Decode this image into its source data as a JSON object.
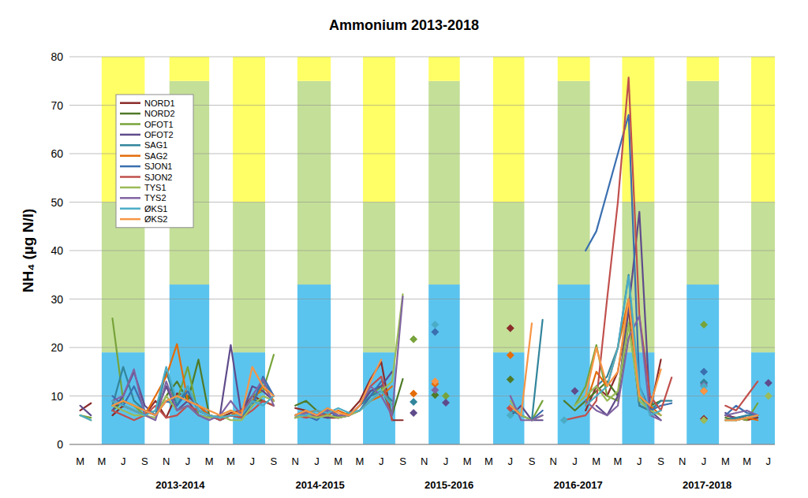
{
  "chart_data": {
    "type": "line",
    "title": "Ammonium 2013-2018",
    "y_label": "NH₄ (µg N/l)",
    "categories": [
      "M",
      null,
      "M",
      null,
      "J",
      null,
      "S",
      null,
      "N",
      null,
      "J",
      null,
      "M",
      null,
      "M",
      null,
      "J",
      null,
      "S",
      null,
      "N",
      null,
      "J",
      null,
      "M",
      null,
      "M",
      null,
      "J",
      null,
      "S",
      null,
      "N",
      null,
      "J",
      null,
      "M",
      null,
      "M",
      null,
      "J",
      null,
      "S",
      null,
      "N",
      null,
      "J",
      null,
      "M",
      null,
      "M",
      null,
      "J",
      null,
      "S",
      null,
      "N",
      null,
      "J",
      null,
      "M",
      null,
      "M",
      null,
      "J"
    ],
    "x_groups": [
      {
        "label": "2013-2014",
        "at": 9.3
      },
      {
        "label": "2014-2015",
        "at": 22.3
      },
      {
        "label": "2015-2016",
        "at": 34.3
      },
      {
        "label": "2016-2017",
        "at": 46.3
      },
      {
        "label": "2017-2018",
        "at": 58.3
      }
    ],
    "ylim": [
      0,
      80
    ],
    "yticks": [
      0,
      10,
      20,
      30,
      40,
      50,
      60,
      70,
      80
    ],
    "grid": true,
    "legend": "top-left",
    "marker": "diamond",
    "zones": [
      {
        "start": 2,
        "end": 6,
        "limits": [
          19,
          50,
          80
        ]
      },
      {
        "start": 8.3,
        "end": 12,
        "limits": [
          33,
          75,
          80
        ]
      },
      {
        "start": 14.2,
        "end": 17.2,
        "limits": [
          19,
          50,
          80
        ]
      },
      {
        "start": 20.2,
        "end": 23.3,
        "limits": [
          33,
          75,
          80
        ]
      },
      {
        "start": 26.3,
        "end": 29.3,
        "limits": [
          19,
          50,
          80
        ]
      },
      {
        "start": 32.4,
        "end": 35.3,
        "limits": [
          33,
          75,
          80
        ]
      },
      {
        "start": 38.4,
        "end": 41.3,
        "limits": [
          19,
          50,
          80
        ]
      },
      {
        "start": 44.4,
        "end": 47.4,
        "limits": [
          33,
          75,
          80
        ]
      },
      {
        "start": 50.4,
        "end": 53.4,
        "limits": [
          19,
          50,
          80
        ]
      },
      {
        "start": 56.4,
        "end": 59.4,
        "limits": [
          33,
          75,
          80
        ]
      },
      {
        "start": 62.4,
        "end": 64.6,
        "limits": [
          19,
          50,
          80
        ]
      }
    ],
    "series": [
      {
        "name": "NORD1",
        "color": "#8b2a2a",
        "values": [
          7,
          8.5,
          null,
          6,
          8,
          7,
          6,
          9,
          5.5,
          10.5,
          10,
          8,
          6,
          5.5,
          6.5,
          7,
          10,
          9,
          8,
          null,
          7.5,
          7,
          6,
          5.5,
          5.5,
          6.5,
          9,
          13.5,
          17,
          5,
          5,
          null,
          null,
          null,
          null,
          null,
          null,
          null,
          null,
          null,
          24,
          null,
          null,
          null,
          null,
          null,
          null,
          7,
          12,
          10,
          15,
          28,
          8,
          7,
          17.5,
          null,
          null,
          null,
          5.3,
          null,
          6,
          5.5,
          5,
          5.5,
          null
        ]
      },
      {
        "name": "NORD2",
        "color": "#4f7a28",
        "values": [
          null,
          null,
          null,
          7,
          9,
          8,
          7,
          6,
          10,
          13,
          9,
          17.5,
          6,
          5.5,
          6,
          5.5,
          9,
          9,
          8,
          null,
          8,
          9,
          7,
          6,
          5.5,
          6,
          8,
          11,
          12,
          6,
          13.5,
          null,
          null,
          10.2,
          null,
          null,
          null,
          null,
          null,
          null,
          13.4,
          null,
          null,
          null,
          null,
          9,
          7,
          9,
          11,
          13,
          10,
          25,
          10,
          8,
          9,
          null,
          null,
          null,
          null,
          null,
          5.5,
          5,
          5.5,
          6,
          null
        ]
      },
      {
        "name": "OFOT1",
        "color": "#77a33a",
        "values": [
          6,
          5.5,
          null,
          26,
          9,
          8,
          6,
          7,
          12,
          9,
          16,
          6,
          5.5,
          6,
          7,
          6,
          10,
          11,
          18.5,
          null,
          6,
          7,
          6,
          5.5,
          6,
          6.5,
          7,
          10,
          12,
          8,
          null,
          21.7,
          null,
          null,
          10,
          null,
          null,
          null,
          null,
          null,
          8,
          6,
          5,
          9,
          null,
          null,
          8,
          12,
          20.5,
          10,
          9,
          30,
          10,
          7,
          9,
          null,
          null,
          null,
          24.7,
          null,
          5,
          5.5,
          5,
          8.5,
          null
        ]
      },
      {
        "name": "OFOT2",
        "color": "#5f4b8b",
        "values": [
          8,
          6,
          null,
          7,
          10,
          15,
          8,
          6,
          12,
          7,
          9,
          6,
          5.5,
          6,
          20.5,
          6,
          12,
          11,
          9,
          null,
          6,
          7,
          6,
          5.5,
          6,
          6,
          8,
          11,
          12,
          15,
          null,
          6.5,
          null,
          null,
          8.6,
          null,
          null,
          null,
          null,
          null,
          5.8,
          8,
          5,
          5,
          null,
          null,
          11,
          null,
          8,
          6,
          10,
          28,
          48,
          7,
          5,
          null,
          null,
          null,
          12.7,
          null,
          6.5,
          5,
          6,
          null,
          12.7
        ]
      },
      {
        "name": "SAG1",
        "color": "#31859c",
        "values": [
          null,
          null,
          null,
          8,
          16,
          9,
          7,
          6,
          15,
          8,
          12,
          7,
          6,
          5,
          6,
          5.5,
          8,
          13,
          10,
          null,
          6,
          6.5,
          6,
          7.5,
          6,
          6,
          8,
          10,
          11,
          9,
          null,
          8.8,
          null,
          null,
          null,
          null,
          null,
          null,
          null,
          null,
          7,
          6,
          5,
          25.7,
          null,
          null,
          null,
          10,
          12,
          14,
          20,
          35,
          8,
          7,
          9,
          9,
          null,
          null,
          12.8,
          null,
          5,
          5.5,
          6,
          6,
          null
        ]
      },
      {
        "name": "SAG2",
        "color": "#e46c0a",
        "values": [
          null,
          null,
          null,
          9,
          8,
          7,
          6,
          10,
          14,
          20.7,
          9,
          8,
          6,
          5.5,
          6,
          7,
          9,
          12,
          9,
          null,
          6,
          6.5,
          7,
          6,
          7,
          6,
          7,
          9,
          10,
          12,
          null,
          10.5,
          null,
          12.5,
          null,
          null,
          null,
          null,
          null,
          null,
          18.4,
          null,
          null,
          null,
          null,
          null,
          null,
          8,
          15,
          12,
          20,
          30,
          10,
          8,
          6,
          null,
          null,
          null,
          11,
          null,
          5,
          5,
          5.5,
          5,
          null
        ]
      },
      {
        "name": "SJON1",
        "color": "#3a6fb0",
        "values": [
          null,
          null,
          null,
          10,
          8,
          12,
          7,
          6,
          9,
          8,
          11,
          7,
          6,
          5,
          6,
          6,
          8,
          14,
          10,
          null,
          5.5,
          6,
          5,
          7,
          5.5,
          6,
          7,
          10,
          13,
          null,
          null,
          null,
          null,
          23.2,
          null,
          null,
          null,
          null,
          null,
          null,
          null,
          6,
          5,
          7,
          null,
          null,
          null,
          40,
          44,
          52,
          60,
          68,
          12,
          7,
          8,
          8.5,
          null,
          null,
          15,
          null,
          6,
          8,
          6.5,
          6,
          null
        ]
      },
      {
        "name": "SJON2",
        "color": "#c0504d",
        "values": [
          null,
          null,
          null,
          7,
          6,
          5,
          6,
          8,
          5.5,
          6,
          8,
          7,
          6,
          5,
          6,
          5.5,
          7,
          9,
          8,
          null,
          6,
          5.5,
          6,
          6,
          5.5,
          6,
          8,
          12,
          14,
          5,
          null,
          null,
          null,
          null,
          null,
          null,
          null,
          null,
          null,
          null,
          7.5,
          null,
          null,
          null,
          null,
          5,
          5.5,
          6,
          9,
          30,
          50,
          75.7,
          26.5,
          10,
          7,
          13.8,
          null,
          null,
          null,
          null,
          8,
          7,
          10,
          13,
          null
        ]
      },
      {
        "name": "TYS1",
        "color": "#9bbb59",
        "values": [
          6,
          5,
          null,
          8,
          7,
          6,
          6,
          5.5,
          10,
          7,
          8,
          6,
          5.5,
          6,
          5,
          5,
          8,
          10,
          9,
          null,
          5.5,
          6,
          5.5,
          6,
          5.5,
          6,
          7,
          9,
          11,
          13,
          31,
          null,
          null,
          null,
          null,
          null,
          null,
          null,
          null,
          null,
          9,
          6,
          5,
          6,
          null,
          null,
          8,
          10,
          12,
          9,
          11,
          25,
          9,
          7,
          6,
          null,
          null,
          null,
          5,
          null,
          5,
          5,
          5.5,
          null,
          10
        ]
      },
      {
        "name": "TYS2",
        "color": "#8064a2",
        "values": [
          null,
          null,
          null,
          9,
          10,
          15.5,
          6,
          5,
          13,
          7,
          8,
          6,
          5,
          6,
          9,
          6,
          10,
          13.5,
          8,
          null,
          6,
          6.5,
          6,
          7,
          6,
          6,
          8,
          12,
          10,
          6,
          30.5,
          null,
          null,
          11.2,
          null,
          null,
          null,
          null,
          null,
          null,
          10,
          5,
          5,
          6,
          null,
          null,
          null,
          9,
          7,
          6,
          8,
          22,
          26.5,
          6,
          5,
          null,
          null,
          null,
          12.2,
          null,
          6,
          6.5,
          7,
          6,
          null
        ]
      },
      {
        "name": "ØKS1",
        "color": "#4bacc6",
        "values": [
          6,
          5,
          null,
          9,
          8,
          7,
          6,
          7,
          16,
          9,
          12,
          7,
          6,
          5.5,
          6,
          6,
          9,
          8,
          10,
          null,
          6,
          6,
          7,
          6.5,
          7.5,
          6.5,
          7,
          9,
          11,
          8,
          null,
          null,
          null,
          24.7,
          null,
          null,
          null,
          null,
          null,
          null,
          6,
          null,
          null,
          null,
          null,
          5,
          null,
          8,
          10,
          12,
          20,
          34.7,
          12,
          6,
          7,
          null,
          null,
          null,
          12,
          null,
          5,
          5,
          5.5,
          6,
          null
        ]
      },
      {
        "name": "ØKS2",
        "color": "#f79646",
        "values": [
          null,
          null,
          null,
          8,
          9,
          8,
          7,
          6,
          9,
          10,
          9,
          8,
          7,
          6,
          7,
          6,
          16,
          12,
          10,
          null,
          6,
          7,
          6,
          7.5,
          6.5,
          6,
          8,
          13,
          17.5,
          null,
          null,
          null,
          null,
          13,
          null,
          null,
          null,
          null,
          null,
          null,
          8,
          6,
          25,
          null,
          null,
          null,
          null,
          10,
          20,
          12,
          15,
          30,
          10,
          8,
          15.5,
          null,
          null,
          null,
          11,
          null,
          5,
          5,
          5.5,
          6,
          null
        ]
      }
    ]
  }
}
